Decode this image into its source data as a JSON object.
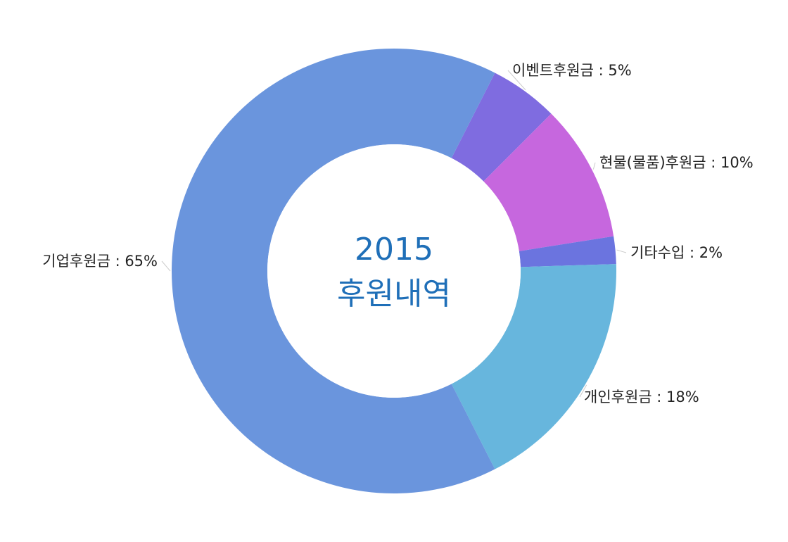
{
  "chart_data": {
    "type": "pie",
    "variant": "donut",
    "center_title": {
      "year": "2015",
      "text": "후원내역"
    },
    "slices": [
      {
        "name": "이벤트후원금",
        "value": 5,
        "label": "이벤트후원금 : 5%",
        "color": "#7f6ce0"
      },
      {
        "name": "현물(물품)후원금",
        "value": 10,
        "label": "현물(물품)후원금 : 10%",
        "color": "#c667de"
      },
      {
        "name": "기타수입",
        "value": 2,
        "label": "기타수입 : 2%",
        "color": "#6b74df"
      },
      {
        "name": "개인후원금",
        "value": 18,
        "label": "개인후원금 : 18%",
        "color": "#67b6dd"
      },
      {
        "name": "기업후원금",
        "value": 65,
        "label": "기업후원금 : 65%",
        "color": "#6a95dd"
      }
    ],
    "legend": "none"
  }
}
